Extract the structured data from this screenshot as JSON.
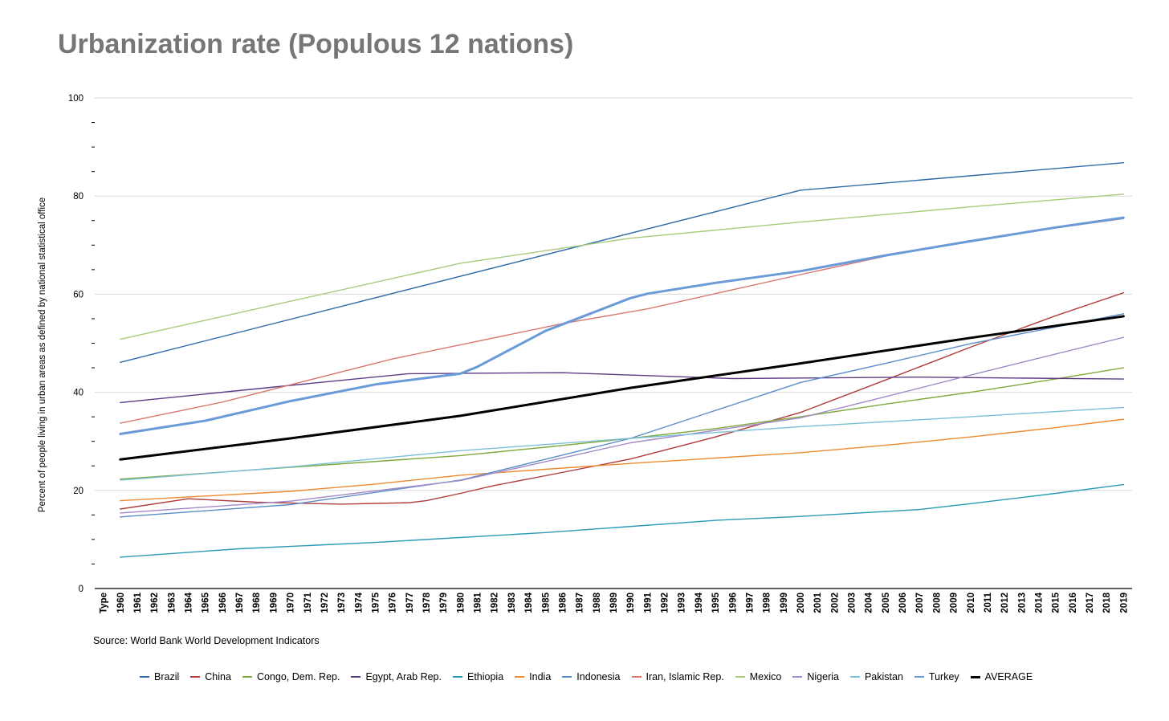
{
  "chart_data": {
    "type": "line",
    "title": "Urbanization rate (Populous 12 nations)",
    "ylabel": "Percent of people living in urban areas as defined by national statistical office",
    "xlabel": "",
    "ylim": [
      0,
      100
    ],
    "yticks": [
      0,
      20,
      40,
      60,
      80,
      100
    ],
    "grid": true,
    "legend_position": "bottom",
    "source": "Source: World Bank World Development Indicators",
    "categories": [
      "Type",
      "1960",
      "1961",
      "1962",
      "1963",
      "1964",
      "1965",
      "1966",
      "1967",
      "1968",
      "1969",
      "1970",
      "1971",
      "1972",
      "1973",
      "1974",
      "1975",
      "1976",
      "1977",
      "1978",
      "1979",
      "1980",
      "1981",
      "1982",
      "1983",
      "1984",
      "1985",
      "1986",
      "1987",
      "1988",
      "1989",
      "1990",
      "1991",
      "1992",
      "1993",
      "1994",
      "1995",
      "1996",
      "1997",
      "1998",
      "1999",
      "2000",
      "2001",
      "2002",
      "2003",
      "2004",
      "2005",
      "2006",
      "2007",
      "2008",
      "2009",
      "2010",
      "2011",
      "2012",
      "2013",
      "2014",
      "2015",
      "2016",
      "2017",
      "2018",
      "2019"
    ],
    "series": [
      {
        "name": "Brazil",
        "color": "#2E6BA8",
        "points": [
          [
            "1960",
            46.1
          ],
          [
            "2000",
            81.2
          ],
          [
            "2019",
            86.8
          ]
        ]
      },
      {
        "name": "China",
        "color": "#B03C3C",
        "points": [
          [
            "1960",
            16.2
          ],
          [
            "1964",
            18.3
          ],
          [
            "1968",
            17.6
          ],
          [
            "1973",
            17.2
          ],
          [
            "1977",
            17.5
          ],
          [
            "1978",
            17.9
          ],
          [
            "1980",
            19.4
          ],
          [
            "1982",
            21.0
          ],
          [
            "1985",
            23.0
          ],
          [
            "1990",
            26.4
          ],
          [
            "1995",
            30.9
          ],
          [
            "2000",
            35.9
          ],
          [
            "2005",
            42.5
          ],
          [
            "2010",
            49.2
          ],
          [
            "2015",
            55.6
          ],
          [
            "2019",
            60.3
          ]
        ]
      },
      {
        "name": "Congo, Dem. Rep.",
        "color": "#7FA83C",
        "points": [
          [
            "1960",
            22.3
          ],
          [
            "1970",
            24.7
          ],
          [
            "1980",
            27.1
          ],
          [
            "1985",
            28.8
          ],
          [
            "1990",
            30.6
          ],
          [
            "1995",
            32.6
          ],
          [
            "2000",
            35.0
          ],
          [
            "2005",
            37.6
          ],
          [
            "2010",
            40.0
          ],
          [
            "2015",
            42.7
          ],
          [
            "2019",
            45.0
          ]
        ]
      },
      {
        "name": "Egypt, Arab Rep.",
        "color": "#5B3C85",
        "points": [
          [
            "1960",
            37.9
          ],
          [
            "1970",
            41.4
          ],
          [
            "1977",
            43.8
          ],
          [
            "1986",
            44.0
          ],
          [
            "1996",
            42.8
          ],
          [
            "2007",
            43.1
          ],
          [
            "2019",
            42.7
          ]
        ]
      },
      {
        "name": "Ethiopia",
        "color": "#2A9AB4",
        "points": [
          [
            "1960",
            6.4
          ],
          [
            "1967",
            8.1
          ],
          [
            "1975",
            9.4
          ],
          [
            "1985",
            11.4
          ],
          [
            "1995",
            13.9
          ],
          [
            "2000",
            14.7
          ],
          [
            "2007",
            16.1
          ],
          [
            "2010",
            17.3
          ],
          [
            "2015",
            19.4
          ],
          [
            "2019",
            21.2
          ]
        ]
      },
      {
        "name": "India",
        "color": "#ED8A2F",
        "points": [
          [
            "1960",
            17.9
          ],
          [
            "1970",
            19.8
          ],
          [
            "1975",
            21.3
          ],
          [
            "1980",
            23.1
          ],
          [
            "1985",
            24.3
          ],
          [
            "1990",
            25.5
          ],
          [
            "2000",
            27.7
          ],
          [
            "2005",
            29.2
          ],
          [
            "2010",
            30.9
          ],
          [
            "2015",
            32.8
          ],
          [
            "2019",
            34.5
          ]
        ]
      },
      {
        "name": "Indonesia",
        "color": "#5A8DC8",
        "points": [
          [
            "1960",
            14.6
          ],
          [
            "1970",
            17.1
          ],
          [
            "1980",
            22.1
          ],
          [
            "1990",
            30.6
          ],
          [
            "2000",
            42.0
          ],
          [
            "2005",
            45.9
          ],
          [
            "2010",
            49.9
          ],
          [
            "2015",
            53.3
          ],
          [
            "2019",
            56.0
          ]
        ]
      },
      {
        "name": "Iran, Islamic Rep.",
        "color": "#D87870",
        "points": [
          [
            "1960",
            33.7
          ],
          [
            "1966",
            38.0
          ],
          [
            "1976",
            46.8
          ],
          [
            "1986",
            54.0
          ],
          [
            "1991",
            57.0
          ],
          [
            "1996",
            60.9
          ],
          [
            "2000",
            64.0
          ],
          [
            "2006",
            68.5
          ],
          [
            "2011",
            71.4
          ],
          [
            "2016",
            74.0
          ],
          [
            "2019",
            75.4
          ]
        ]
      },
      {
        "name": "Mexico",
        "color": "#A8CA7C",
        "points": [
          [
            "1960",
            50.8
          ],
          [
            "1980",
            66.3
          ],
          [
            "1990",
            71.4
          ],
          [
            "2000",
            74.7
          ],
          [
            "2010",
            77.8
          ],
          [
            "2019",
            80.4
          ]
        ]
      },
      {
        "name": "Nigeria",
        "color": "#A48AC8",
        "points": [
          [
            "1960",
            15.4
          ],
          [
            "1970",
            17.8
          ],
          [
            "1980",
            22.0
          ],
          [
            "1990",
            29.7
          ],
          [
            "2000",
            34.8
          ],
          [
            "2005",
            39.1
          ],
          [
            "2010",
            43.5
          ],
          [
            "2015",
            47.8
          ],
          [
            "2019",
            51.2
          ]
        ]
      },
      {
        "name": "Pakistan",
        "color": "#7CC0D8",
        "points": [
          [
            "1960",
            22.1
          ],
          [
            "1970",
            24.8
          ],
          [
            "1980",
            28.1
          ],
          [
            "1990",
            30.6
          ],
          [
            "2000",
            33.0
          ],
          [
            "2010",
            35.0
          ],
          [
            "2019",
            36.9
          ]
        ]
      },
      {
        "name": "Turkey",
        "color": "#6A9AD8",
        "points": [
          [
            "1960",
            31.5
          ],
          [
            "1965",
            34.2
          ],
          [
            "1970",
            38.2
          ],
          [
            "1975",
            41.6
          ],
          [
            "1980",
            43.8
          ],
          [
            "1981",
            45.2
          ],
          [
            "1985",
            52.5
          ],
          [
            "1990",
            59.2
          ],
          [
            "1991",
            60.1
          ],
          [
            "1995",
            62.3
          ],
          [
            "2000",
            64.7
          ],
          [
            "2005",
            67.9
          ],
          [
            "2010",
            70.8
          ],
          [
            "2015",
            73.6
          ],
          [
            "2019",
            75.6
          ]
        ]
      },
      {
        "name": "AVERAGE",
        "color": "#000000",
        "points": [
          [
            "1960",
            26.3
          ],
          [
            "1970",
            30.6
          ],
          [
            "1980",
            35.2
          ],
          [
            "1990",
            40.9
          ],
          [
            "2000",
            45.9
          ],
          [
            "2010",
            51.1
          ],
          [
            "2019",
            55.5
          ]
        ]
      }
    ]
  }
}
